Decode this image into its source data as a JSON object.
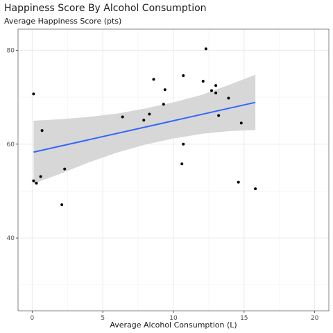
{
  "chart_data": {
    "type": "scatter",
    "title": "Happiness Score By Alcohol Consumption",
    "subtitle": "Average Happiness Score (pts)",
    "xlabel": "Average Alcohol Consumption (L)",
    "ylabel": "",
    "xlim": [
      -1,
      21
    ],
    "ylim": [
      24.5,
      84.5
    ],
    "x_ticks": [
      0,
      5,
      10,
      15,
      20
    ],
    "y_ticks": [
      40,
      60,
      80
    ],
    "x_tick_labels": [
      "0",
      "5",
      "10",
      "15",
      "20"
    ],
    "y_tick_labels": [
      "40",
      "60",
      "80"
    ],
    "grid": true,
    "legend": "none",
    "points": [
      {
        "x": 0.1,
        "y": 70.7
      },
      {
        "x": 0.1,
        "y": 52.2
      },
      {
        "x": 0.3,
        "y": 51.7
      },
      {
        "x": 0.6,
        "y": 53.1
      },
      {
        "x": 0.7,
        "y": 62.9
      },
      {
        "x": 2.1,
        "y": 47.1
      },
      {
        "x": 2.3,
        "y": 54.7
      },
      {
        "x": 6.4,
        "y": 65.8
      },
      {
        "x": 7.9,
        "y": 65.1
      },
      {
        "x": 8.3,
        "y": 66.4
      },
      {
        "x": 8.6,
        "y": 73.8
      },
      {
        "x": 9.3,
        "y": 68.5
      },
      {
        "x": 9.4,
        "y": 71.6
      },
      {
        "x": 10.6,
        "y": 55.8
      },
      {
        "x": 10.7,
        "y": 60.0
      },
      {
        "x": 10.7,
        "y": 74.6
      },
      {
        "x": 12.1,
        "y": 73.4
      },
      {
        "x": 12.3,
        "y": 80.3
      },
      {
        "x": 12.7,
        "y": 71.4
      },
      {
        "x": 13.0,
        "y": 72.5
      },
      {
        "x": 13.0,
        "y": 70.9
      },
      {
        "x": 13.2,
        "y": 66.1
      },
      {
        "x": 13.9,
        "y": 69.8
      },
      {
        "x": 14.6,
        "y": 51.9
      },
      {
        "x": 14.8,
        "y": 64.5
      },
      {
        "x": 15.8,
        "y": 50.5
      }
    ],
    "trend": {
      "method": "linear",
      "x": [
        0.1,
        15.8
      ],
      "y": [
        58.3,
        68.9
      ]
    },
    "confidence_band": {
      "x": [
        0.1,
        2.0,
        4.0,
        6.0,
        8.0,
        10.0,
        12.0,
        14.0,
        15.8
      ],
      "upper": [
        65.0,
        65.3,
        65.8,
        66.5,
        67.6,
        68.9,
        70.5,
        72.7,
        74.8
      ],
      "lower": [
        51.6,
        53.7,
        56.1,
        58.2,
        59.9,
        61.2,
        62.2,
        62.8,
        63.0
      ]
    },
    "colors": {
      "points": "#000000",
      "trend": "#3366ff",
      "band": "#d3d3d3",
      "grid_major": "#ebebeb",
      "grid_minor": "#f4f4f4",
      "panel_border": "#333333"
    }
  }
}
